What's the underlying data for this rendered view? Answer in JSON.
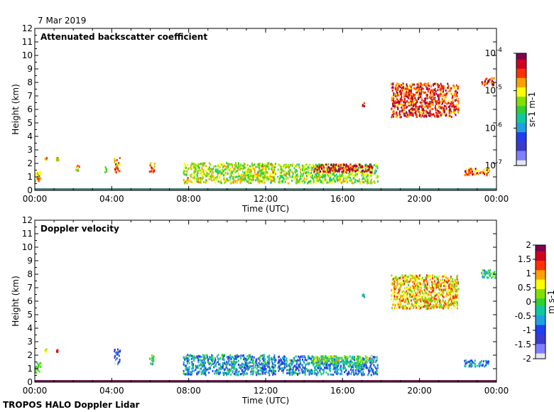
{
  "date_label": "7 Mar 2019",
  "footer": "TROPOS HALO Doppler Lidar",
  "colors": {
    "cmap": [
      "#e6e6f2",
      "#8080ff",
      "#3a3ad0",
      "#1f3ff0",
      "#1fa0e0",
      "#10c8a0",
      "#30d030",
      "#80e000",
      "#ffff00",
      "#ffa000",
      "#ff3000",
      "#d00020",
      "#800050"
    ],
    "ground": "#4d7f7f",
    "doppler_ground": "#6a1f4f"
  },
  "chart_data": [
    {
      "type": "heatmap",
      "title": "Attenuated backscatter coefficient",
      "xlabel": "Time (UTC)",
      "ylabel": "Height (km)",
      "xlim": [
        0,
        24
      ],
      "ylim": [
        0,
        12
      ],
      "x_ticks": [
        "00:00",
        "04:00",
        "08:00",
        "12:00",
        "16:00",
        "20:00",
        "00:00"
      ],
      "y_ticks": [
        "0",
        "1",
        "2",
        "3",
        "4",
        "5",
        "6",
        "7",
        "8",
        "9",
        "10",
        "11",
        "12"
      ],
      "colorbar": {
        "label": "sr-1 m-1",
        "scale": "log",
        "range": [
          1e-07,
          0.0001
        ],
        "ticks": [
          {
            "base": "10",
            "exp": "-4"
          },
          {
            "base": "10",
            "exp": "-5"
          },
          {
            "base": "10",
            "exp": "-6"
          },
          {
            "base": "10",
            "exp": "-7"
          }
        ]
      },
      "features": [
        {
          "x0": 0.0,
          "x1": 0.3,
          "y0": 0.7,
          "y1": 1.5,
          "level": 0.68
        },
        {
          "x0": 0.5,
          "x1": 0.6,
          "y0": 2.3,
          "y1": 2.5,
          "level": 0.7
        },
        {
          "x0": 1.1,
          "x1": 1.2,
          "y0": 2.3,
          "y1": 2.5,
          "level": 0.7
        },
        {
          "x0": 2.1,
          "x1": 2.3,
          "y0": 1.5,
          "y1": 1.9,
          "level": 0.7
        },
        {
          "x0": 3.6,
          "x1": 3.7,
          "y0": 1.4,
          "y1": 1.9,
          "level": 0.55
        },
        {
          "x0": 4.1,
          "x1": 4.4,
          "y0": 1.4,
          "y1": 2.5,
          "level": 0.75
        },
        {
          "x0": 5.9,
          "x1": 6.2,
          "y0": 1.4,
          "y1": 2.1,
          "level": 0.75
        },
        {
          "x0": 7.7,
          "x1": 12.5,
          "y0": 0.6,
          "y1": 2.1,
          "level": 0.62
        },
        {
          "x0": 12.6,
          "x1": 17.8,
          "y0": 0.6,
          "y1": 2.0,
          "level": 0.58
        },
        {
          "x0": 14.5,
          "x1": 17.5,
          "y0": 1.4,
          "y1": 2.0,
          "level": 0.88
        },
        {
          "x0": 17.0,
          "x1": 17.1,
          "y0": 6.3,
          "y1": 6.6,
          "level": 0.85
        },
        {
          "x0": 18.5,
          "x1": 22.0,
          "y0": 5.5,
          "y1": 8.0,
          "level": 0.85
        },
        {
          "x0": 22.3,
          "x1": 23.6,
          "y0": 1.2,
          "y1": 1.7,
          "level": 0.82
        },
        {
          "x0": 23.2,
          "x1": 23.9,
          "y0": 7.8,
          "y1": 8.4,
          "level": 0.88
        }
      ]
    },
    {
      "type": "heatmap",
      "title": "Doppler velocity",
      "xlabel": "Time (UTC)",
      "ylabel": "Height (km)",
      "xlim": [
        0,
        24
      ],
      "ylim": [
        0,
        12
      ],
      "x_ticks": [
        "00:00",
        "04:00",
        "08:00",
        "12:00",
        "16:00",
        "20:00",
        "00:00"
      ],
      "y_ticks": [
        "0",
        "1",
        "2",
        "3",
        "4",
        "5",
        "6",
        "7",
        "8",
        "9",
        "10",
        "11",
        "12"
      ],
      "colorbar": {
        "label": "m s-1",
        "scale": "linear",
        "range": [
          -2,
          2
        ],
        "ticks": [
          "2",
          "1.5",
          "1",
          "0.5",
          "0",
          "-0.5",
          "-1",
          "-1.5",
          "-2"
        ]
      },
      "features": [
        {
          "x0": 0.0,
          "x1": 0.3,
          "y0": 0.7,
          "y1": 1.5,
          "level": 0.5
        },
        {
          "x0": 0.5,
          "x1": 0.6,
          "y0": 2.3,
          "y1": 2.5,
          "level": 0.62
        },
        {
          "x0": 1.1,
          "x1": 1.2,
          "y0": 2.3,
          "y1": 2.5,
          "level": 0.9
        },
        {
          "x0": 4.1,
          "x1": 4.4,
          "y0": 1.4,
          "y1": 2.5,
          "level": 0.18
        },
        {
          "x0": 5.9,
          "x1": 6.2,
          "y0": 1.4,
          "y1": 2.1,
          "level": 0.45
        },
        {
          "x0": 7.7,
          "x1": 12.5,
          "y0": 0.6,
          "y1": 2.1,
          "level": 0.35
        },
        {
          "x0": 12.6,
          "x1": 17.8,
          "y0": 0.6,
          "y1": 2.0,
          "level": 0.32
        },
        {
          "x0": 14.5,
          "x1": 17.5,
          "y0": 1.4,
          "y1": 2.0,
          "level": 0.55
        },
        {
          "x0": 17.0,
          "x1": 17.1,
          "y0": 6.3,
          "y1": 6.6,
          "level": 0.4
        },
        {
          "x0": 18.5,
          "x1": 22.0,
          "y0": 5.5,
          "y1": 8.0,
          "level": 0.7
        },
        {
          "x0": 22.3,
          "x1": 23.6,
          "y0": 1.2,
          "y1": 1.7,
          "level": 0.3
        },
        {
          "x0": 23.2,
          "x1": 23.9,
          "y0": 7.8,
          "y1": 8.4,
          "level": 0.45
        }
      ]
    }
  ]
}
